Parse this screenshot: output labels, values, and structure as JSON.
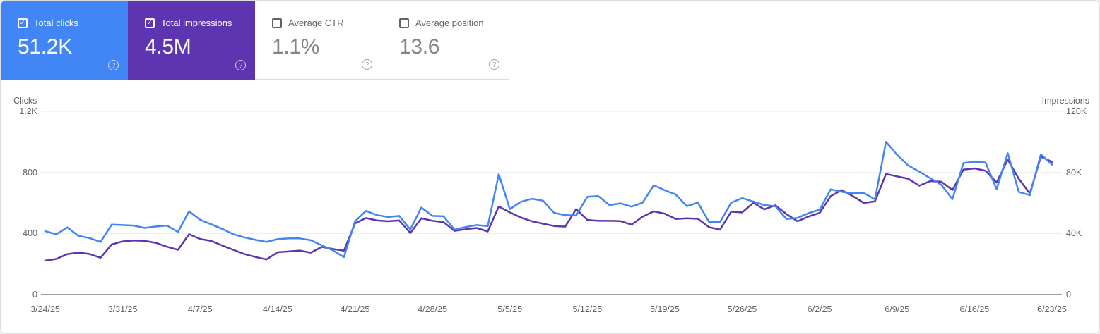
{
  "icons": {
    "check": "✓",
    "help": "?"
  },
  "cards": [
    {
      "label": "Total clicks",
      "value": "51.2K",
      "checked": true,
      "color": "#4285f4"
    },
    {
      "label": "Total impressions",
      "value": "4.5M",
      "checked": true,
      "color": "#5e35b1"
    },
    {
      "label": "Average CTR",
      "value": "1.1%",
      "checked": false,
      "color": "#ffffff"
    },
    {
      "label": "Average position",
      "value": "13.6",
      "checked": false,
      "color": "#ffffff"
    }
  ],
  "chart_data": {
    "type": "line",
    "x_labels": [
      "3/24/25",
      "3/31/25",
      "4/7/25",
      "4/14/25",
      "4/21/25",
      "4/28/25",
      "5/5/25",
      "5/12/25",
      "5/19/25",
      "5/26/25",
      "6/2/25",
      "6/9/25",
      "6/16/25",
      "6/23/25"
    ],
    "left_axis": {
      "title": "Clicks",
      "ticks": [
        "1.2K",
        "800",
        "400",
        "0"
      ],
      "max": 1200
    },
    "right_axis": {
      "title": "Impressions",
      "ticks": [
        "120K",
        "80K",
        "40K",
        "0"
      ],
      "max": 120000
    },
    "grid": "horizontal-only",
    "legend": "none",
    "date_range": "3/24/25 - 6/23/25 (daily)",
    "series": [
      {
        "name": "Total clicks",
        "axis": "left",
        "color": "#4285f4",
        "data_name": "clicks-line",
        "values": [
          415,
          395,
          440,
          385,
          370,
          345,
          458,
          455,
          452,
          436,
          446,
          452,
          410,
          545,
          490,
          460,
          430,
          395,
          375,
          358,
          345,
          363,
          368,
          368,
          356,
          322,
          290,
          245,
          480,
          548,
          520,
          508,
          515,
          426,
          570,
          515,
          513,
          425,
          442,
          455,
          448,
          788,
          560,
          608,
          627,
          615,
          535,
          520,
          518,
          640,
          645,
          586,
          597,
          576,
          602,
          716,
          683,
          655,
          579,
          602,
          475,
          475,
          602,
          632,
          609,
          586,
          579,
          495,
          502,
          533,
          556,
          689,
          673,
          663,
          665,
          624,
          1000,
          915,
          846,
          805,
          762,
          719,
          625,
          861,
          870,
          865,
          690,
          926,
          672,
          651,
          918,
          851
        ]
      },
      {
        "name": "Total impressions",
        "axis": "right",
        "color": "#5e35b1",
        "data_name": "impressions-line",
        "values": [
          22200,
          23300,
          26500,
          27400,
          26600,
          24100,
          32800,
          34800,
          35400,
          35100,
          33900,
          31300,
          29300,
          39500,
          36400,
          35100,
          32100,
          29300,
          26500,
          24600,
          23000,
          27700,
          28200,
          28800,
          27400,
          31200,
          29800,
          28700,
          46600,
          50100,
          48500,
          48000,
          48500,
          40300,
          50000,
          48300,
          47500,
          41700,
          42800,
          43600,
          41300,
          57700,
          53800,
          50400,
          48000,
          46400,
          44900,
          44500,
          56000,
          48900,
          48300,
          48300,
          48100,
          45800,
          51000,
          54500,
          53000,
          49500,
          50000,
          49600,
          44100,
          42500,
          54300,
          53800,
          60100,
          55800,
          58500,
          52700,
          48000,
          51100,
          53500,
          64500,
          68400,
          64500,
          60000,
          61000,
          79000,
          77400,
          75900,
          71300,
          74300,
          73900,
          68500,
          81800,
          82600,
          81100,
          73400,
          88400,
          75900,
          66200,
          90300,
          86900
        ]
      }
    ]
  }
}
